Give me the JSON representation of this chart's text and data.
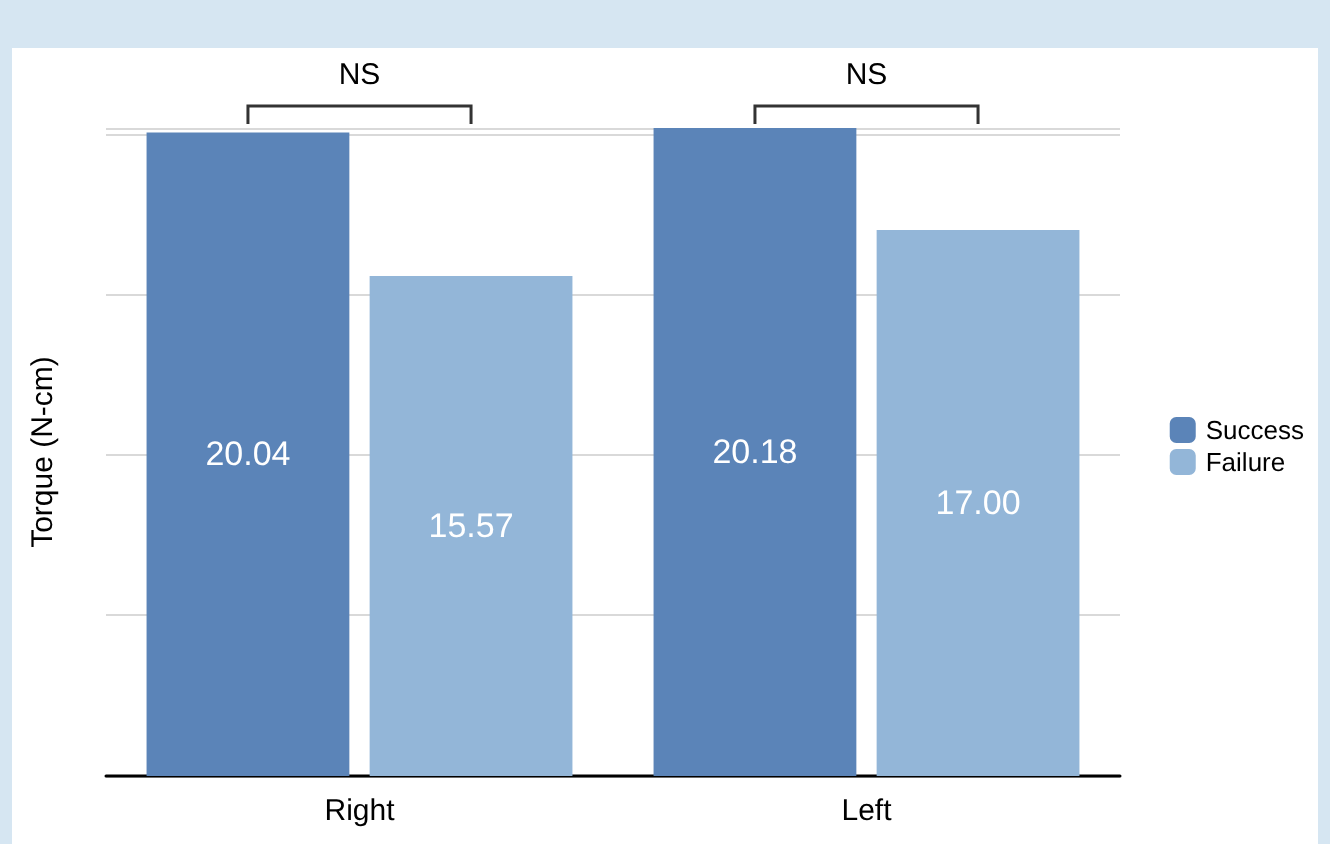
{
  "chart_data": {
    "type": "bar",
    "ylabel": "Torque (N-cm)",
    "categories": [
      "Right",
      "Left"
    ],
    "series": [
      {
        "name": "Success",
        "color": "#5b84b8",
        "values": [
          20.04,
          20.18
        ],
        "value_labels": [
          "20.04",
          "20.18"
        ]
      },
      {
        "name": "Failure",
        "color": "#93b6d8",
        "values": [
          15.57,
          17.0
        ],
        "value_labels": [
          "15.57",
          "17.00"
        ]
      }
    ],
    "annotations": [
      "NS",
      "NS"
    ],
    "grid": "y",
    "legend": "right",
    "tick_labels": "x"
  }
}
